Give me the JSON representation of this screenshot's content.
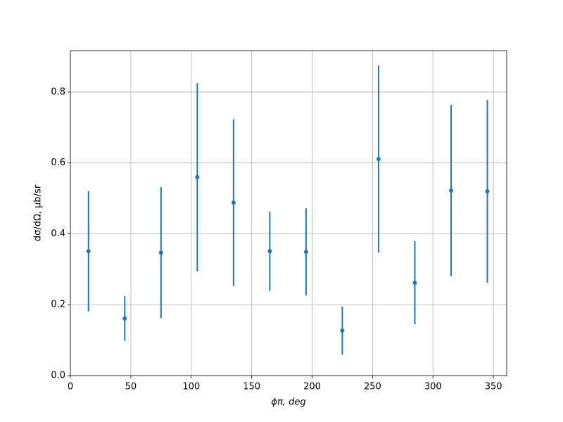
{
  "chart_data": {
    "type": "errorbar",
    "xlabel": "ϕπ, deg",
    "ylabel": "dσ/dΩ, μb/sr",
    "x": [
      15,
      45,
      75,
      105,
      135,
      165,
      195,
      225,
      255,
      285,
      315,
      345
    ],
    "series": [
      {
        "color": "#1f77b4",
        "values": [
          0.351,
          0.161,
          0.347,
          0.56,
          0.488,
          0.351,
          0.349,
          0.127,
          0.611,
          0.262,
          0.522,
          0.52
        ],
        "errors": [
          0.17,
          0.063,
          0.185,
          0.266,
          0.235,
          0.112,
          0.123,
          0.068,
          0.264,
          0.117,
          0.242,
          0.258
        ]
      }
    ],
    "xlim": [
      0,
      361
    ],
    "ylim": [
      0,
      0.917
    ],
    "xticks": [
      0,
      50,
      100,
      150,
      200,
      250,
      300,
      350
    ],
    "yticks": [
      {
        "value": 0,
        "label": "0.0"
      },
      {
        "value": 0.2,
        "label": "0.2"
      },
      {
        "value": 0.4,
        "label": "0.4"
      },
      {
        "value": 0.6,
        "label": "0.6"
      },
      {
        "value": 0.8,
        "label": "0.8"
      }
    ],
    "grid": true
  }
}
